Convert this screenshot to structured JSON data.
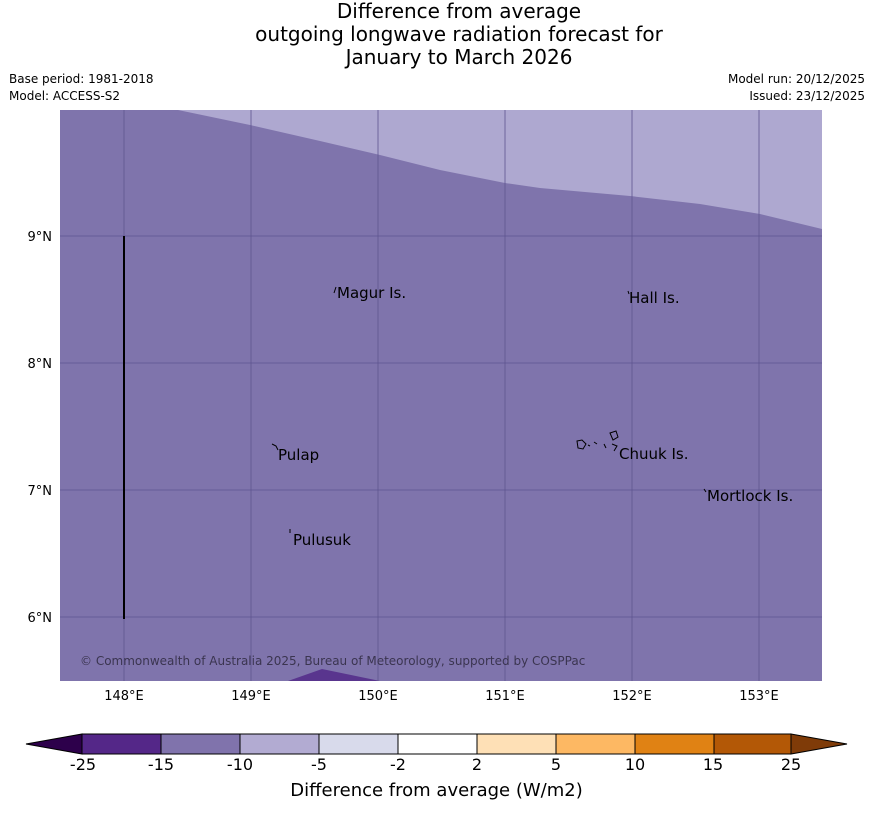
{
  "title": {
    "line1": "Difference from average",
    "line2": "outgoing longwave radiation forecast for",
    "line3": "January to March 2026"
  },
  "meta": {
    "base_period": "Base period: 1981-2018",
    "model": "Model: ACCESS-S2",
    "model_run": "Model run: 20/12/2025",
    "issued": "Issued: 23/12/2025"
  },
  "map": {
    "lat_labels": [
      "9°N",
      "8°N",
      "7°N",
      "6°N"
    ],
    "lon_labels": [
      "148°E",
      "149°E",
      "150°E",
      "151°E",
      "152°E",
      "153°E"
    ],
    "places": [
      {
        "name": "Magur Is."
      },
      {
        "name": "Hall Is."
      },
      {
        "name": "Pulap"
      },
      {
        "name": "Chuuk Is."
      },
      {
        "name": "Mortlock Is."
      },
      {
        "name": "Pulusuk"
      }
    ],
    "copyright": "© Commonwealth of Australia 2025, Bureau of Meteorology, supported by COSPPac",
    "colors": {
      "main_fill": "#7f74ac",
      "north_band": "#aea8d0",
      "south_patch": "#59358e",
      "gridline": "#5e5590"
    }
  },
  "colorbar": {
    "ticks": [
      "-25",
      "-15",
      "-10",
      "-5",
      "-2",
      "2",
      "5",
      "10",
      "15",
      "25"
    ],
    "colors": [
      "#2d004b",
      "#542788",
      "#8073ac",
      "#b2abd2",
      "#d8daeb",
      "#ffffff",
      "#fee0b6",
      "#fdb863",
      "#e08214",
      "#b35806",
      "#7f3b08"
    ],
    "label": "Difference from average (W/m2)"
  }
}
